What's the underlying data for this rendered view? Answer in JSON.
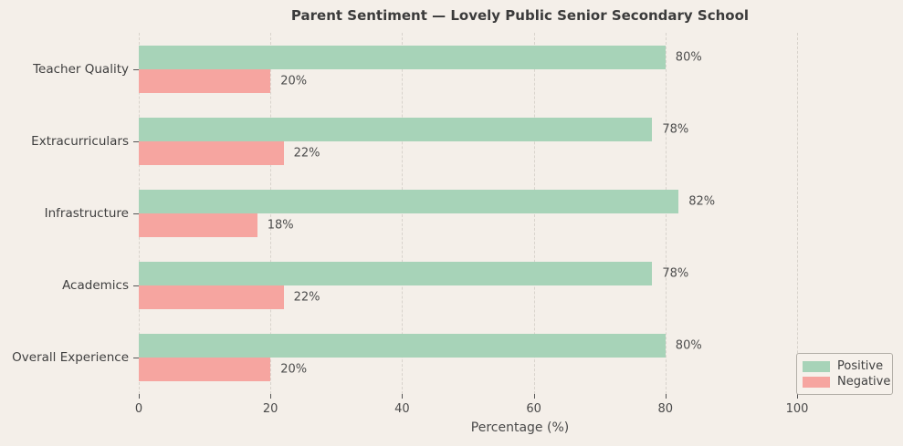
{
  "chart_data": {
    "type": "bar",
    "orientation": "horizontal",
    "title": "Parent Sentiment — Lovely Public Senior Secondary School",
    "xlabel": "Percentage (%)",
    "ylabel": "",
    "categories": [
      "Teacher Quality",
      "Extracurriculars",
      "Infrastructure",
      "Academics",
      "Overall Experience"
    ],
    "series": [
      {
        "name": "Positive",
        "color": "#a7d3b8",
        "values": [
          80,
          78,
          82,
          78,
          80
        ]
      },
      {
        "name": "Negative",
        "color": "#f6a5a0",
        "values": [
          20,
          22,
          18,
          22,
          20
        ]
      }
    ],
    "value_labels": {
      "Positive": [
        "80%",
        "78%",
        "82%",
        "78%",
        "80%"
      ],
      "Negative": [
        "20%",
        "22%",
        "18%",
        "22%",
        "20%"
      ]
    },
    "xticks": [
      0,
      20,
      40,
      60,
      80,
      100
    ],
    "xtick_labels": [
      "0",
      "20",
      "40",
      "60",
      "80",
      "100"
    ],
    "xlim": [
      0,
      115.8
    ],
    "grid": "vertical-dashed",
    "legend_position": "lower-right",
    "colors": {
      "background": "#f4efe9",
      "positive": "#a7d3b8",
      "negative": "#f6a5a0",
      "grid": "#d8d3cc",
      "text": "#4a4a4a",
      "title": "#3b3b3b"
    }
  }
}
